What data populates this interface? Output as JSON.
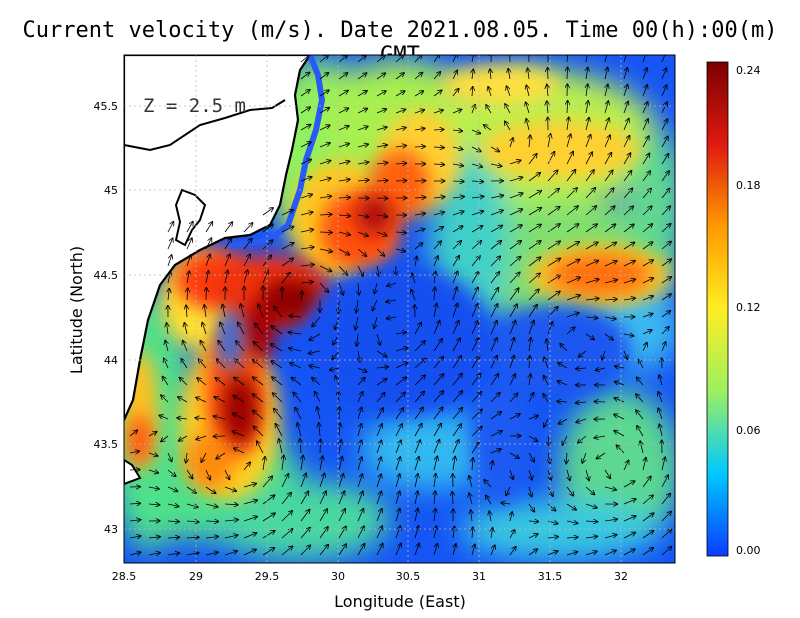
{
  "title": "Current velocity (m/s). Date 2021.08.05. Time 00(h):00(m) GMT",
  "depth_label": "Z = 2.5 m",
  "axes": {
    "xlabel": "Longitude (East)",
    "ylabel": "Latitude (North)",
    "x_ticks": [
      "28.5",
      "29",
      "29.5",
      "30",
      "30.5",
      "31",
      "31.5",
      "32"
    ],
    "y_ticks": [
      "43",
      "43.5",
      "44",
      "44.5",
      "45",
      "45.5"
    ]
  },
  "colorbar": {
    "ticks": [
      "0.24",
      "0.18",
      "0.12",
      "0.06",
      "0.00"
    ],
    "stops": [
      "#0a3cff",
      "#00c8ff",
      "#9cf060",
      "#ffee22",
      "#ff9a00",
      "#e01a10",
      "#7a0000"
    ]
  },
  "chart_data": {
    "type": "heatmap",
    "title": "Current velocity (m/s). Date 2021.08.05. Time 00(h):00(m) GMT",
    "xlabel": "Longitude (East)",
    "ylabel": "Latitude (North)",
    "xlim": [
      28.5,
      32.4
    ],
    "ylim": [
      42.8,
      45.8
    ],
    "value_range": [
      0.0,
      0.24
    ],
    "grid": true,
    "hotspots": [
      {
        "lon": 29.25,
        "lat": 43.7,
        "value": 0.23
      },
      {
        "lon": 29.6,
        "lat": 44.25,
        "value": 0.24
      },
      {
        "lon": 29.15,
        "lat": 44.5,
        "value": 0.22
      },
      {
        "lon": 30.3,
        "lat": 45.0,
        "value": 0.2
      },
      {
        "lon": 31.85,
        "lat": 44.5,
        "value": 0.19
      },
      {
        "lon": 31.4,
        "lat": 45.35,
        "value": 0.16
      }
    ]
  }
}
